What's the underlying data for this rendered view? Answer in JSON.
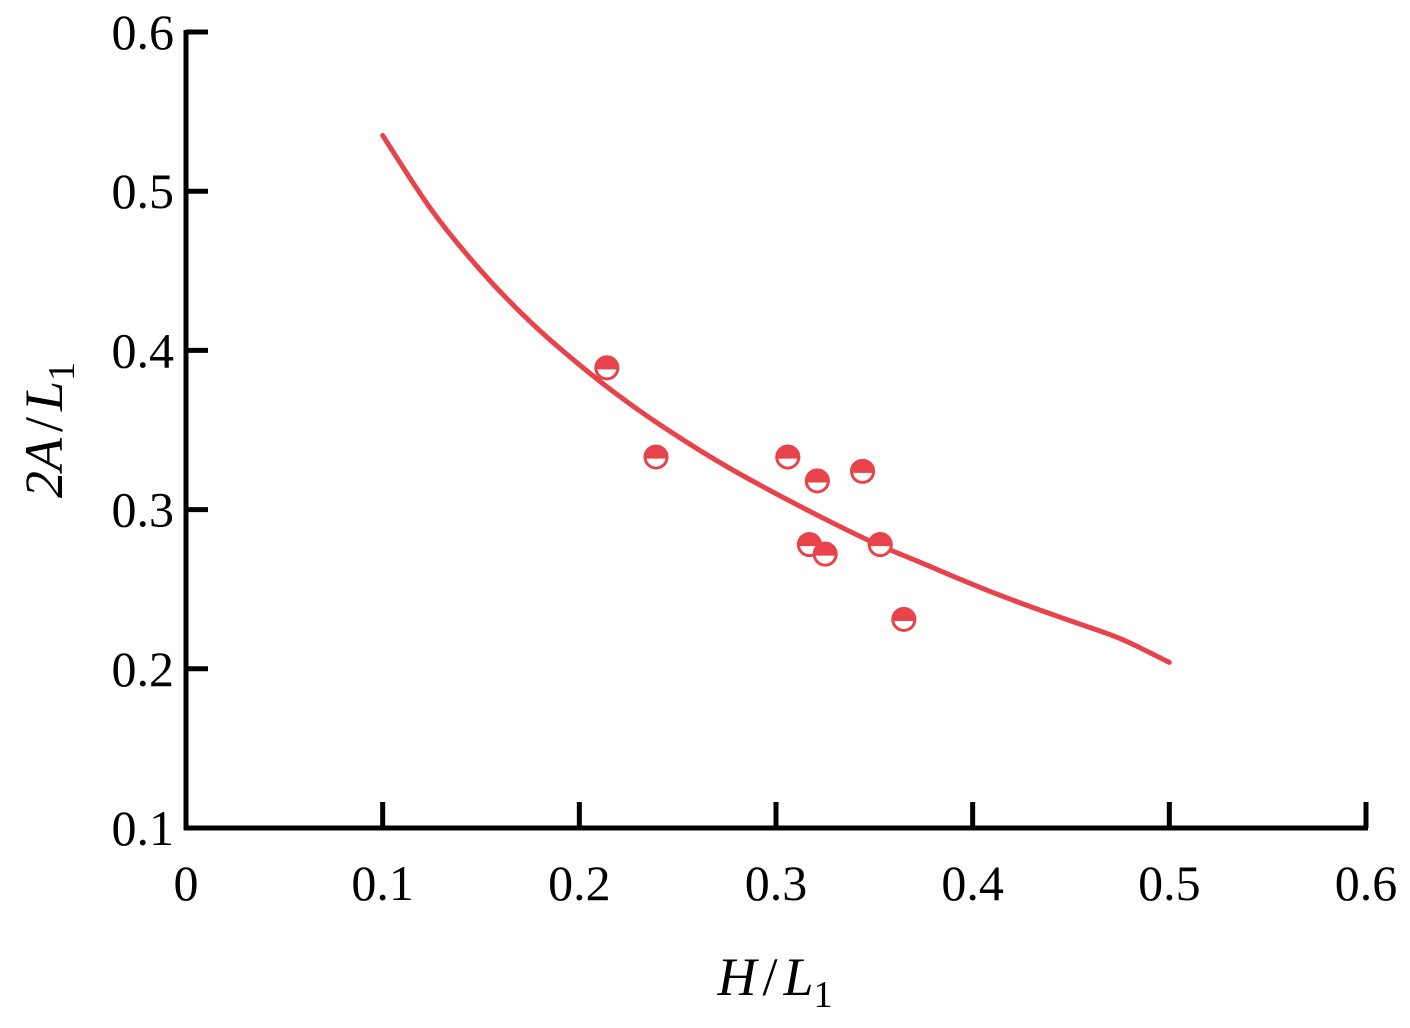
{
  "chart_data": {
    "type": "scatter",
    "title": "",
    "xlabel": {
      "main": "H",
      "slash": "/",
      "var": "L",
      "sub": "1"
    },
    "ylabel": {
      "main": "2A",
      "slash": "/",
      "var": "L",
      "sub": "1"
    },
    "xlim": [
      0,
      0.6
    ],
    "ylim": [
      0.1,
      0.6
    ],
    "xticks": [
      "0",
      "0.1",
      "0.2",
      "0.3",
      "0.4",
      "0.5",
      "0.6"
    ],
    "yticks": [
      "0.1",
      "0.2",
      "0.3",
      "0.4",
      "0.5",
      "0.6"
    ],
    "grid": false,
    "legend": "none",
    "colors": {
      "series": "#e8434b",
      "axis": "#000000"
    },
    "series": [
      {
        "kind": "points",
        "marker": "half-filled-circle",
        "points": [
          {
            "x": 0.214,
            "y": 0.389
          },
          {
            "x": 0.239,
            "y": 0.333
          },
          {
            "x": 0.306,
            "y": 0.333
          },
          {
            "x": 0.321,
            "y": 0.318
          },
          {
            "x": 0.344,
            "y": 0.324
          },
          {
            "x": 0.317,
            "y": 0.278
          },
          {
            "x": 0.325,
            "y": 0.272
          },
          {
            "x": 0.353,
            "y": 0.278
          },
          {
            "x": 0.365,
            "y": 0.231
          }
        ]
      },
      {
        "kind": "fit-curve",
        "x": [
          0.1,
          0.125,
          0.15,
          0.175,
          0.2,
          0.225,
          0.25,
          0.275,
          0.3,
          0.325,
          0.35,
          0.375,
          0.4,
          0.425,
          0.45,
          0.475,
          0.5
        ],
        "y": [
          0.535,
          0.488,
          0.45,
          0.418,
          0.391,
          0.367,
          0.346,
          0.327,
          0.31,
          0.294,
          0.279,
          0.266,
          0.253,
          0.241,
          0.23,
          0.219,
          0.204
        ]
      }
    ]
  }
}
